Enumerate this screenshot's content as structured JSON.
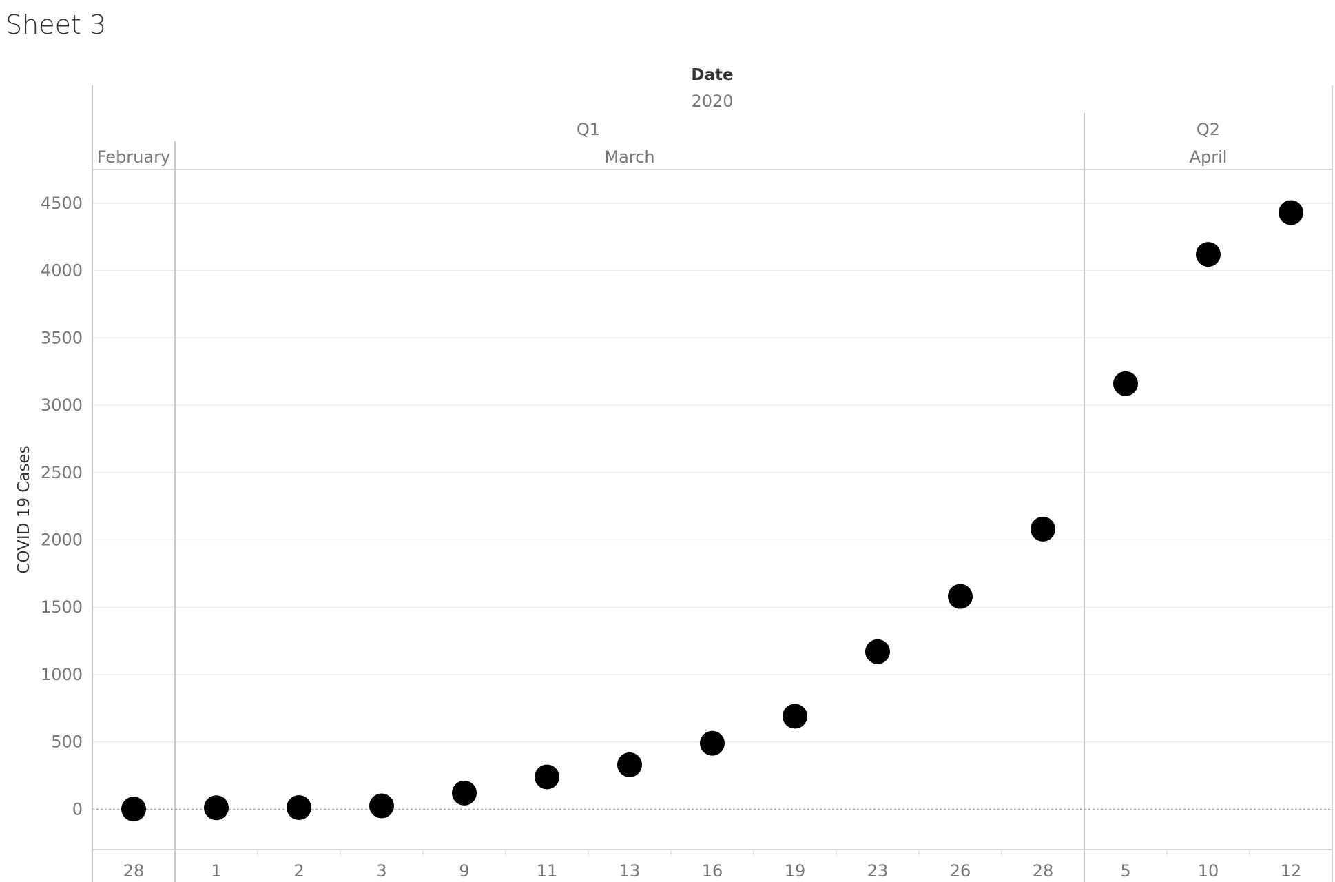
{
  "sheet": {
    "title": "Sheet 3"
  },
  "chart_data": {
    "type": "scatter",
    "xlabel": "Date",
    "ylabel": "COVID 19 Cases",
    "ylim": [
      -300,
      4750
    ],
    "yticks": [
      0,
      500,
      1000,
      1500,
      2000,
      2500,
      3000,
      3500,
      4000,
      4500
    ],
    "grid": true,
    "zero_line": "dotted",
    "header": {
      "year": "2020",
      "quarters": [
        {
          "label": "Q1",
          "months": [
            "February",
            "March"
          ]
        },
        {
          "label": "Q2",
          "months": [
            "April"
          ]
        }
      ],
      "months": [
        {
          "label": "February",
          "quarter": "Q1",
          "days": [
            "28"
          ]
        },
        {
          "label": "March",
          "quarter": "Q1",
          "days": [
            "1",
            "2",
            "3",
            "9",
            "11",
            "13",
            "16",
            "19",
            "23",
            "26",
            "28"
          ]
        },
        {
          "label": "April",
          "quarter": "Q2",
          "days": [
            "5",
            "10",
            "12"
          ]
        }
      ]
    },
    "points": [
      {
        "date": "2020-02-28",
        "day": "28",
        "month": "February",
        "value": 1
      },
      {
        "date": "2020-03-01",
        "day": "1",
        "month": "March",
        "value": 11
      },
      {
        "date": "2020-03-02",
        "day": "2",
        "month": "March",
        "value": 12
      },
      {
        "date": "2020-03-03",
        "day": "3",
        "month": "March",
        "value": 25
      },
      {
        "date": "2020-03-09",
        "day": "9",
        "month": "March",
        "value": 120
      },
      {
        "date": "2020-03-11",
        "day": "11",
        "month": "March",
        "value": 240
      },
      {
        "date": "2020-03-13",
        "day": "13",
        "month": "March",
        "value": 330
      },
      {
        "date": "2020-03-16",
        "day": "16",
        "month": "March",
        "value": 490
      },
      {
        "date": "2020-03-19",
        "day": "19",
        "month": "March",
        "value": 690
      },
      {
        "date": "2020-03-23",
        "day": "23",
        "month": "March",
        "value": 1170
      },
      {
        "date": "2020-03-26",
        "day": "26",
        "month": "March",
        "value": 1580
      },
      {
        "date": "2020-03-28",
        "day": "28",
        "month": "March",
        "value": 2080
      },
      {
        "date": "2020-04-05",
        "day": "5",
        "month": "April",
        "value": 3160
      },
      {
        "date": "2020-04-10",
        "day": "10",
        "month": "April",
        "value": 4120
      },
      {
        "date": "2020-04-12",
        "day": "12",
        "month": "April",
        "value": 4430
      }
    ],
    "colors": {
      "mark": "#000000",
      "gridline": "#ececec",
      "divider": "#c8c8c8",
      "tick_text": "#777777",
      "axis_title": "#333333"
    }
  }
}
